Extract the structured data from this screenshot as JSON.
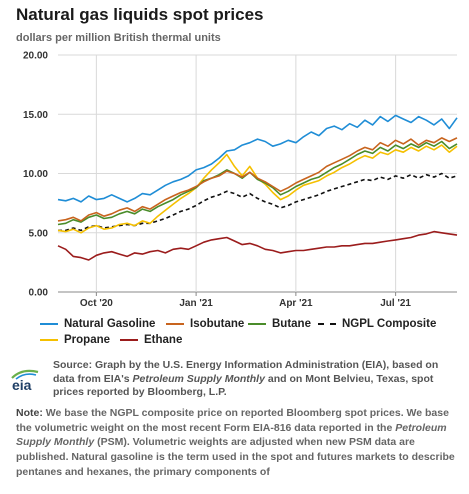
{
  "header": {
    "title": "Natural gas liquids spot prices",
    "subtitle": "dollars per million British thermal units"
  },
  "chart_data": {
    "type": "line",
    "title": "Natural gas liquids spot prices",
    "ylabel": "dollars per million British thermal units",
    "ylim": [
      0,
      20
    ],
    "yticks": [
      "0.00",
      "5.00",
      "10.00",
      "15.00",
      "20.00"
    ],
    "xticks": [
      {
        "label": "Oct '20",
        "week": 5
      },
      {
        "label": "Jan '21",
        "week": 18
      },
      {
        "label": "Apr '21",
        "week": 31
      },
      {
        "label": "Jul '21",
        "week": 44
      }
    ],
    "x_start": "2020-09-01",
    "x_end": "2021-09-07",
    "grid": true,
    "legend_position": "bottom",
    "series": [
      {
        "name": "Natural Gasoline",
        "color": "#1f8dd6",
        "dash": "solid",
        "values": [
          7.8,
          7.7,
          7.9,
          7.6,
          8.1,
          7.8,
          7.9,
          8.2,
          7.9,
          7.6,
          7.9,
          8.3,
          8.2,
          8.6,
          9.0,
          9.3,
          9.5,
          9.8,
          10.3,
          10.5,
          10.8,
          11.3,
          11.9,
          12.0,
          12.4,
          12.6,
          12.9,
          12.7,
          12.3,
          12.5,
          12.8,
          12.6,
          13.1,
          13.5,
          13.2,
          13.8,
          14.0,
          13.7,
          14.2,
          13.9,
          14.5,
          14.1,
          14.8,
          14.4,
          14.9,
          14.6,
          14.3,
          14.8,
          14.5,
          14.1,
          14.6,
          13.8,
          14.7
        ]
      },
      {
        "name": "Isobutane",
        "color": "#c8641e",
        "dash": "solid",
        "values": [
          6.0,
          6.1,
          6.3,
          6.0,
          6.5,
          6.7,
          6.4,
          6.6,
          6.9,
          7.1,
          6.8,
          7.2,
          7.0,
          7.4,
          7.8,
          8.1,
          8.4,
          8.6,
          8.9,
          9.3,
          9.6,
          9.8,
          10.2,
          10.0,
          9.7,
          10.1,
          9.6,
          9.3,
          8.9,
          8.5,
          8.8,
          9.2,
          9.5,
          9.8,
          10.1,
          10.6,
          10.9,
          11.2,
          11.5,
          11.9,
          12.2,
          12.0,
          12.6,
          12.3,
          12.8,
          12.5,
          12.9,
          12.4,
          12.8,
          12.6,
          13.0,
          12.7,
          13.0
        ]
      },
      {
        "name": "Butane",
        "color": "#4a8c2a",
        "dash": "solid",
        "values": [
          5.7,
          5.8,
          6.1,
          5.9,
          6.3,
          6.5,
          6.2,
          6.3,
          6.6,
          6.8,
          6.6,
          7.0,
          6.8,
          7.2,
          7.5,
          7.8,
          8.2,
          8.5,
          8.8,
          9.4,
          9.6,
          9.9,
          10.3,
          10.0,
          9.6,
          10.1,
          9.5,
          9.2,
          8.8,
          8.2,
          8.5,
          8.9,
          9.2,
          9.5,
          9.7,
          10.1,
          10.5,
          10.8,
          11.2,
          11.6,
          11.9,
          11.7,
          12.2,
          11.9,
          12.4,
          12.1,
          12.5,
          12.2,
          12.6,
          12.3,
          12.7,
          12.1,
          12.5
        ]
      },
      {
        "name": "NGPL Composite",
        "color": "#111111",
        "dash": "dashed",
        "values": [
          5.2,
          5.2,
          5.4,
          5.2,
          5.5,
          5.6,
          5.4,
          5.5,
          5.6,
          5.7,
          5.6,
          5.8,
          5.8,
          6.0,
          6.2,
          6.5,
          6.8,
          7.0,
          7.3,
          7.7,
          8.0,
          8.2,
          8.5,
          8.3,
          8.0,
          8.3,
          7.9,
          7.6,
          7.4,
          7.1,
          7.3,
          7.6,
          7.8,
          8.0,
          8.2,
          8.5,
          8.7,
          8.9,
          9.1,
          9.3,
          9.5,
          9.4,
          9.7,
          9.5,
          9.8,
          9.6,
          9.9,
          9.6,
          9.9,
          9.7,
          10.0,
          9.6,
          9.8
        ]
      },
      {
        "name": "Propane",
        "color": "#f5c000",
        "dash": "solid",
        "values": [
          5.2,
          5.1,
          5.3,
          5.0,
          5.4,
          5.6,
          5.3,
          5.4,
          5.7,
          5.8,
          5.6,
          6.0,
          5.8,
          6.4,
          6.9,
          7.4,
          7.9,
          8.3,
          8.8,
          9.6,
          10.3,
          10.9,
          11.6,
          10.6,
          9.8,
          10.6,
          9.6,
          9.1,
          8.4,
          7.8,
          8.1,
          8.6,
          9.0,
          9.2,
          9.4,
          9.8,
          10.1,
          10.5,
          10.8,
          11.2,
          11.5,
          11.3,
          11.8,
          11.6,
          12.0,
          11.8,
          12.2,
          11.9,
          12.3,
          12.0,
          12.4,
          11.8,
          12.3
        ]
      },
      {
        "name": "Ethane",
        "color": "#9b1c1c",
        "dash": "solid",
        "values": [
          3.9,
          3.6,
          3.0,
          2.9,
          2.7,
          3.1,
          3.3,
          3.4,
          3.2,
          3.0,
          3.3,
          3.2,
          3.4,
          3.5,
          3.3,
          3.6,
          3.7,
          3.6,
          3.9,
          4.2,
          4.4,
          4.5,
          4.6,
          4.3,
          4.0,
          4.1,
          3.9,
          3.6,
          3.5,
          3.3,
          3.4,
          3.5,
          3.5,
          3.6,
          3.7,
          3.8,
          3.8,
          3.9,
          3.9,
          4.0,
          4.1,
          4.1,
          4.2,
          4.3,
          4.4,
          4.5,
          4.6,
          4.8,
          4.9,
          5.1,
          5.0,
          4.9,
          4.8
        ]
      }
    ]
  },
  "legend": {
    "items": [
      {
        "label": "Natural Gasoline",
        "color": "#1f8dd6",
        "dash": "solid"
      },
      {
        "label": "Isobutane",
        "color": "#c8641e",
        "dash": "solid"
      },
      {
        "label": "Butane",
        "color": "#4a8c2a",
        "dash": "solid"
      },
      {
        "label": "NGPL Composite",
        "color": "#111111",
        "dash": "dashed"
      },
      {
        "label": "Propane",
        "color": "#f5c000",
        "dash": "solid"
      },
      {
        "label": "Ethane",
        "color": "#9b1c1c",
        "dash": "solid"
      }
    ]
  },
  "logo": {
    "text": "eia"
  },
  "source": {
    "part1": "Source: Graph by the U.S. Energy Information Administration (EIA), based on data from EIA's ",
    "pub": "Petroleum Supply Monthly",
    "part2": " and on Mont Belvieu, Texas, spot prices reported by Bloomberg, L.P."
  },
  "note": {
    "label": "Note:",
    "part1": " We base the NGPL composite price on reported Bloomberg spot prices. We base the volumetric weight on the most recent Form EIA-816 data reported in the ",
    "pub": "Petroleum Supply Monthly",
    "part2": " (PSM). Volumetric weights are adjusted when new PSM data are published. Natural gasoline is the term used in the spot and futures markets to describe pentanes and hexanes, the primary components of"
  }
}
